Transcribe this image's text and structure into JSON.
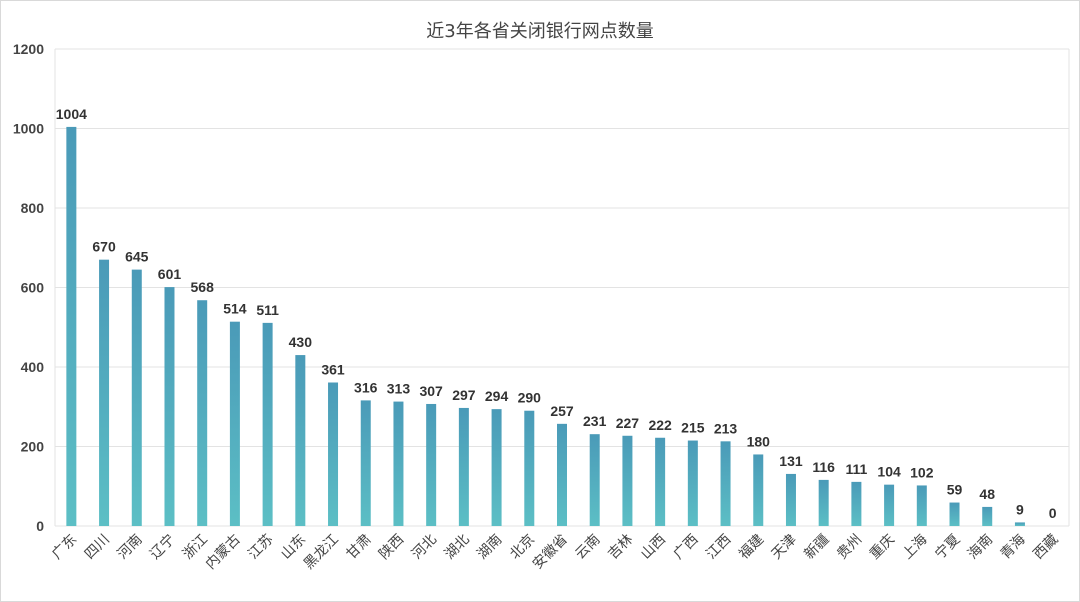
{
  "chart_data": {
    "type": "bar",
    "title": "近3年各省关闭银行网点数量",
    "xlabel": "",
    "ylabel": "",
    "ylim": [
      0,
      1200
    ],
    "yticks": [
      0,
      200,
      400,
      600,
      800,
      1000,
      1200
    ],
    "grid": true,
    "categories": [
      "广东",
      "四川",
      "河南",
      "辽宁",
      "浙江",
      "内蒙古",
      "江苏",
      "山东",
      "黑龙江",
      "甘肃",
      "陕西",
      "河北",
      "湖北",
      "湖南",
      "北京",
      "安徽省",
      "云南",
      "吉林",
      "山西",
      "广西",
      "江西",
      "福建",
      "天津",
      "新疆",
      "贵州",
      "重庆",
      "上海",
      "宁夏",
      "海南",
      "青海",
      "西藏"
    ],
    "values": [
      1004,
      670,
      645,
      601,
      568,
      514,
      511,
      430,
      361,
      316,
      313,
      307,
      297,
      294,
      290,
      257,
      231,
      227,
      222,
      215,
      213,
      180,
      131,
      116,
      111,
      104,
      102,
      59,
      48,
      9,
      0
    ],
    "colors": {
      "bar_top": "#4a9ab8",
      "bar_bottom": "#5cbfc5",
      "grid": "#e3e3e3"
    }
  }
}
